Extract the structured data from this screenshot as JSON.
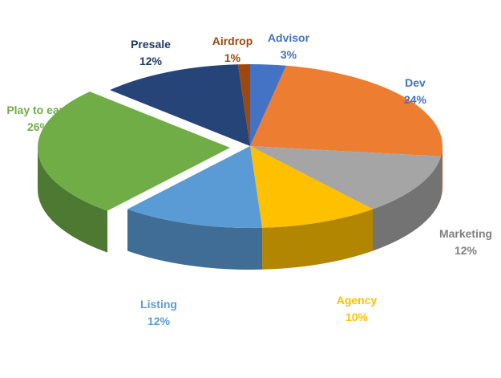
{
  "chart_data": {
    "type": "pie",
    "style": "3d-exploded-slice",
    "slices": [
      {
        "name": "Advisor",
        "value": 3,
        "label": "3%",
        "color": "#4472C4"
      },
      {
        "name": "Dev",
        "value": 24,
        "label": "24%",
        "color": "#ED7D31"
      },
      {
        "name": "Marketing",
        "value": 12,
        "label": "12%",
        "color": "#A5A5A5"
      },
      {
        "name": "Agency",
        "value": 10,
        "label": "10%",
        "color": "#FFC000"
      },
      {
        "name": "Listing",
        "value": 12,
        "label": "12%",
        "color": "#5B9BD5"
      },
      {
        "name": "Play to earn",
        "value": 26,
        "label": "26%",
        "color": "#70AD47"
      },
      {
        "name": "Presale",
        "value": 12,
        "label": "12%",
        "color": "#264478"
      },
      {
        "name": "Airdrop",
        "value": 1,
        "label": "1%",
        "color": "#9E480E"
      }
    ],
    "label_colors": {
      "Advisor": "#4472C4",
      "Dev": "#4472C4",
      "Marketing": "#7F7F7F",
      "Agency": "#FFC000",
      "Listing": "#5B9BD5",
      "Play to earn": "#70AD47",
      "Presale": "#1F3864",
      "Airdrop": "#9E480E"
    }
  }
}
